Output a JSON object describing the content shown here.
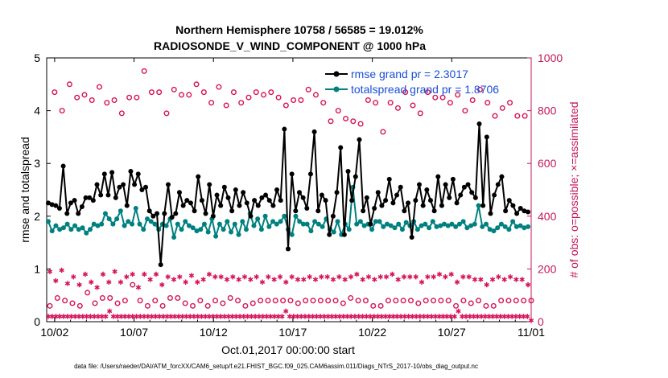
{
  "chart_data": {
    "type": "line",
    "title_line1": "Northern Hemisphere 10758 / 56585 = 19.012%",
    "title_line2": "RADIOSONDE_V_WIND_COMPONENT @ 1000 hPa",
    "xlabel": "Oct.01,2017 00:00:00 start",
    "ylabel_left": "rmse and totalspread",
    "ylabel_right": "# of obs: o=possible; ×=assimilated",
    "ylim_left": [
      0,
      5
    ],
    "ylim_right": [
      0,
      1000
    ],
    "xlim_days": [
      0.5,
      31.0
    ],
    "x_tick_labels": [
      "10/02",
      "10/07",
      "10/12",
      "10/17",
      "10/22",
      "10/27",
      "11/01"
    ],
    "x_tick_days": [
      1,
      6,
      11,
      16,
      21,
      26,
      31
    ],
    "y_ticks_left": [
      "0",
      "1",
      "2",
      "3",
      "4",
      "5"
    ],
    "y_ticks_right": [
      "0",
      "200",
      "400",
      "600",
      "800",
      "1000"
    ],
    "series": [
      {
        "name": "rmse",
        "legend": "rmse grand pr = 2.3017",
        "color": "#000000",
        "values": [
          2.25,
          2.22,
          2.2,
          2.15,
          2.95,
          2.05,
          2.25,
          2.3,
          2.05,
          2.18,
          2.35,
          2.35,
          2.3,
          2.6,
          2.4,
          2.8,
          2.4,
          2.83,
          2.35,
          2.55,
          2.6,
          2.2,
          2.85,
          2.6,
          2.8,
          2.5,
          2.55,
          2.1,
          2.0,
          2.05,
          1.08,
          2.05,
          2.6,
          1.98,
          2.05,
          2.45,
          2.2,
          2.3,
          2.25,
          2.1,
          2.75,
          2.3,
          2.05,
          2.6,
          2.0,
          2.4,
          2.2,
          2.55,
          2.35,
          2.1,
          2.5,
          2.2,
          2.45,
          2.25,
          2.0,
          2.3,
          2.2,
          2.35,
          2.4,
          2.3,
          2.2,
          2.5,
          2.3,
          3.65,
          1.38,
          2.8,
          2.1,
          2.45,
          2.35,
          2.15,
          2.8,
          3.6,
          2.1,
          2.4,
          2.3,
          1.65,
          2.0,
          2.45,
          3.3,
          1.65,
          2.85,
          2.3,
          2.75,
          3.45,
          2.1,
          2.35,
          1.85,
          2.15,
          2.45,
          2.2,
          2.3,
          2.7,
          2.25,
          2.4,
          2.55,
          2.1,
          2.25,
          1.6,
          2.3,
          2.6,
          2.2,
          2.5,
          2.3,
          2.1,
          2.75,
          2.2,
          2.6,
          2.35,
          2.7,
          2.25,
          2.4,
          2.55,
          2.6,
          2.45,
          2.35,
          3.75,
          2.2,
          3.5,
          2.05,
          2.4,
          2.6,
          2.75,
          2.1,
          2.3,
          2.2,
          2.05,
          2.15,
          2.1,
          2.08
        ]
      },
      {
        "name": "totalspread",
        "legend": "totalspread grand pr = 1.8706",
        "color": "#00807f",
        "values": [
          1.9,
          1.72,
          1.82,
          1.75,
          1.78,
          1.85,
          1.75,
          1.82,
          1.75,
          1.78,
          1.68,
          1.75,
          1.85,
          1.82,
          1.85,
          2.05,
          1.95,
          1.85,
          1.95,
          2.1,
          1.82,
          1.9,
          1.85,
          2.15,
          1.85,
          1.75,
          1.95,
          1.9,
          1.85,
          1.75,
          1.85,
          1.82,
          1.95,
          1.6,
          1.85,
          1.75,
          1.9,
          1.82,
          1.78,
          1.72,
          1.75,
          1.85,
          1.7,
          1.95,
          1.62,
          1.85,
          1.75,
          1.9,
          1.7,
          1.85,
          1.65,
          1.9,
          1.75,
          2.05,
          1.82,
          1.95,
          1.75,
          2.0,
          1.8,
          1.9,
          1.85,
          1.9,
          2.0,
          1.75,
          1.65,
          2.0,
          1.9,
          1.85,
          1.85,
          1.72,
          1.9,
          1.85,
          1.8,
          1.95,
          1.75,
          1.7,
          1.9,
          1.65,
          1.85,
          1.75,
          2.55,
          1.85,
          1.9,
          1.82,
          1.85,
          1.75,
          1.9,
          1.9,
          1.8,
          1.85,
          1.82,
          1.78,
          1.85,
          1.75,
          1.88,
          1.82,
          1.9,
          1.75,
          1.82,
          1.85,
          1.78,
          1.9,
          1.8,
          1.82,
          1.85,
          1.82,
          1.85,
          1.8,
          1.85,
          1.9,
          1.78,
          1.82,
          1.85,
          2.2,
          1.8,
          1.85,
          1.75,
          1.72,
          1.78,
          1.85,
          1.8,
          1.75,
          1.9,
          1.8,
          1.82,
          1.78,
          1.8
        ]
      },
      {
        "name": "obs_possible",
        "axis": "right",
        "marker": "circle",
        "color": "#d6145a",
        "values": [
          870,
          800,
          900,
          850,
          860,
          840,
          890,
          830,
          840,
          790,
          850,
          850,
          950,
          870,
          870,
          790,
          880,
          860,
          860,
          900,
          870,
          830,
          890,
          820,
          870,
          830,
          850,
          870,
          860,
          870,
          850,
          820,
          840,
          840,
          880,
          860,
          830,
          760,
          800,
          770,
          760,
          750,
          840,
          830,
          720,
          830,
          810,
          870,
          820,
          790,
          870,
          850,
          850,
          830,
          860,
          800,
          840,
          880,
          830,
          780,
          810,
          830,
          780,
          780
        ],
        "low_values": [
          60,
          90,
          80,
          70,
          60,
          110,
          70,
          90,
          90,
          70,
          80,
          140,
          80,
          60,
          80,
          60,
          90,
          90,
          70,
          60,
          80,
          60,
          80,
          70,
          90,
          80,
          60,
          70,
          80,
          80,
          80,
          80,
          80,
          70,
          80,
          80,
          80,
          80,
          80,
          70,
          90,
          80,
          80,
          60,
          60,
          80,
          80,
          80,
          80,
          70,
          80,
          80,
          80,
          80,
          60,
          80,
          70,
          80,
          60,
          60,
          80,
          80,
          80,
          80,
          80
        ]
      },
      {
        "name": "obs_assimilated",
        "axis": "right",
        "marker": "asterisk",
        "color": "#d6145a",
        "values": [
          190,
          155,
          195,
          145,
          170,
          140,
          180,
          150,
          130,
          180,
          150,
          190,
          150,
          170,
          180,
          130,
          180,
          160,
          180,
          140,
          170,
          160,
          170,
          150,
          175,
          150,
          160,
          180,
          170,
          170,
          160,
          170,
          160,
          170,
          160,
          170,
          150,
          170,
          160,
          170,
          150,
          170,
          160,
          160,
          170,
          160,
          170,
          170,
          160,
          170,
          160,
          170,
          180,
          160,
          170,
          160,
          170,
          170,
          180,
          160,
          170,
          170,
          170,
          150,
          170,
          170,
          180,
          170,
          180,
          150,
          170,
          170,
          160,
          160,
          140,
          160,
          170,
          160,
          170,
          160,
          160,
          140
        ],
        "low_values": [
          20,
          20,
          20,
          20,
          20,
          20,
          20,
          20,
          20,
          20,
          20,
          20,
          20,
          20,
          20,
          20,
          40,
          20,
          20,
          20,
          20,
          20,
          20,
          20,
          20,
          20,
          20,
          20,
          20,
          20,
          20,
          20,
          20,
          20,
          20,
          20,
          20,
          20,
          20,
          20,
          20,
          20,
          20,
          20,
          20,
          20,
          20,
          20,
          20,
          20,
          20,
          20,
          20,
          20,
          20,
          20,
          20,
          20,
          20,
          20,
          20,
          20,
          40,
          20,
          20,
          20,
          20,
          20,
          20,
          20,
          20,
          20,
          20,
          20,
          20,
          20,
          20,
          20,
          20,
          20,
          20,
          20,
          20,
          20,
          20,
          20,
          20,
          20,
          20,
          20,
          20,
          20,
          20,
          20,
          20,
          20,
          20,
          20,
          20,
          20,
          20,
          20,
          20,
          20,
          20,
          20,
          20,
          40,
          20,
          20,
          20,
          20,
          20,
          20,
          20,
          20,
          20,
          20,
          20,
          20,
          20,
          20,
          20,
          20,
          20,
          20,
          5
        ]
      }
    ],
    "footer": "data file: /Users/raeder/DAI/ATM_forcXX/CAM6_setup/f.e21.FHIST_BGC.f09_025.CAM6assim.011/Diags_NTrS_2017-10/obs_diag_output.nc"
  }
}
